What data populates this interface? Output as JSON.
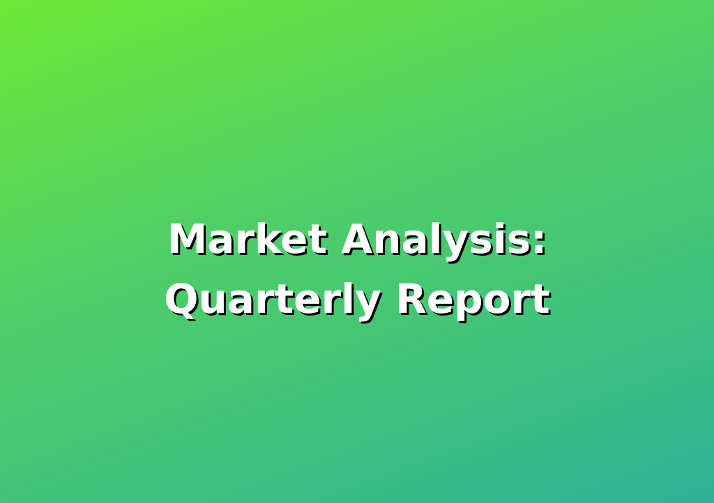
{
  "slide": {
    "title_line_1": "Market Analysis:",
    "title_line_2": "Quarterly Report"
  },
  "colors": {
    "gradient_start": "#6ee836",
    "gradient_end": "#2fb096",
    "title_text": "#ffffff",
    "title_shadow": "#000000"
  }
}
